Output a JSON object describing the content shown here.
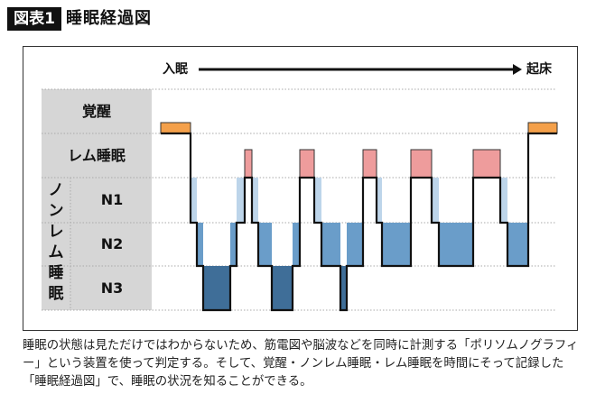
{
  "header": {
    "badge": "図表1",
    "title": "睡眠経過図"
  },
  "time_axis": {
    "start_label": "入眠",
    "end_label": "起床"
  },
  "stages": {
    "wake": "覚醒",
    "rem": "レム睡眠",
    "nonrem_group": "ノンレム睡眠",
    "n1": "N1",
    "n2": "N2",
    "n3": "N3"
  },
  "colors": {
    "wake": "#f4a04a",
    "rem": "#ee9c9c",
    "n1": "#bdd5ea",
    "n2": "#6a9dc9",
    "n3": "#3f6e98",
    "label_bg": "#d6d6d6"
  },
  "hypnogram": [
    {
      "stage": "W",
      "duration": 33
    },
    {
      "stage": "N1",
      "duration": 7
    },
    {
      "stage": "N2",
      "duration": 7
    },
    {
      "stage": "N3",
      "duration": 30
    },
    {
      "stage": "N2",
      "duration": 7
    },
    {
      "stage": "N1",
      "duration": 9
    },
    {
      "stage": "R",
      "duration": 8
    },
    {
      "stage": "N1",
      "duration": 7
    },
    {
      "stage": "N2",
      "duration": 15
    },
    {
      "stage": "N3",
      "duration": 23
    },
    {
      "stage": "N2",
      "duration": 8
    },
    {
      "stage": "R",
      "duration": 16
    },
    {
      "stage": "N1",
      "duration": 8
    },
    {
      "stage": "N2",
      "duration": 21
    },
    {
      "stage": "N3",
      "duration": 7
    },
    {
      "stage": "N2",
      "duration": 18
    },
    {
      "stage": "R",
      "duration": 15
    },
    {
      "stage": "N1",
      "duration": 6
    },
    {
      "stage": "N2",
      "duration": 32
    },
    {
      "stage": "R",
      "duration": 23
    },
    {
      "stage": "N1",
      "duration": 8
    },
    {
      "stage": "N2",
      "duration": 38
    },
    {
      "stage": "R",
      "duration": 30
    },
    {
      "stage": "N1",
      "duration": 8
    },
    {
      "stage": "N2",
      "duration": 23
    },
    {
      "stage": "W",
      "duration": 32
    }
  ],
  "caption": "睡眠の状態は見ただけではわからないため、筋電図や脳波などを同時に計測する「ポリソムノグラフィー」という装置を使って判定する。そして、覚醒・ノンレム睡眠・レム睡眠を時間にそって記録した「睡眠経過図」で、睡眠の状況を知ることができる。"
}
